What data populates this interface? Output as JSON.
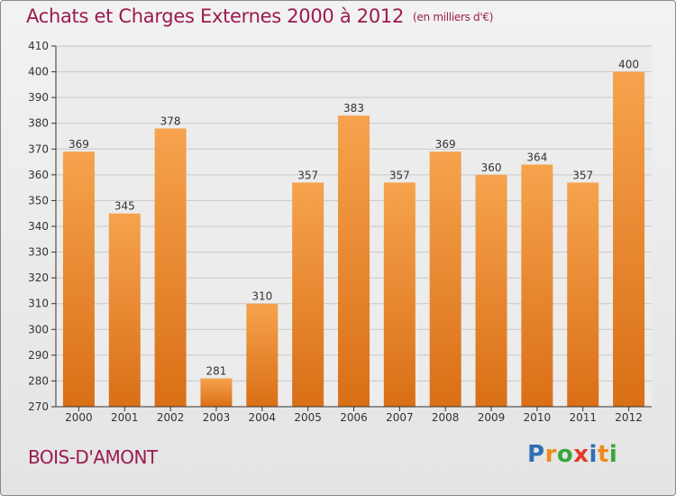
{
  "header": {
    "title": "Achats et Charges Externes 2000 à 2012",
    "unit": "(en milliers d'€)"
  },
  "footer": {
    "location": "BOIS-D'AMONT",
    "brand": "Proxiti",
    "brand_colors": [
      "#2f6fb6",
      "#f08a1c",
      "#3aa63a",
      "#e23a2a",
      "#2f6fb6",
      "#f08a1c",
      "#3aa63a"
    ]
  },
  "colors": {
    "bar_top": "#f6a34d",
    "bar_bottom": "#d96f16",
    "title": "#9b1b4f",
    "axis": "#333333",
    "grid": "#c8c8c8"
  },
  "chart_data": {
    "type": "bar",
    "title": "Achats et Charges Externes 2000 à 2012",
    "subtitle": "(en milliers d'€)",
    "xlabel": "",
    "ylabel": "",
    "categories": [
      "2000",
      "2001",
      "2002",
      "2003",
      "2004",
      "2005",
      "2006",
      "2007",
      "2008",
      "2009",
      "2010",
      "2011",
      "2012"
    ],
    "values": [
      369,
      345,
      378,
      281,
      310,
      357,
      383,
      357,
      369,
      360,
      364,
      357,
      400
    ],
    "ylim": [
      270,
      410
    ],
    "yticks": [
      270,
      280,
      290,
      300,
      310,
      320,
      330,
      340,
      350,
      360,
      370,
      380,
      390,
      400,
      410
    ],
    "grid": true,
    "legend": "none"
  }
}
